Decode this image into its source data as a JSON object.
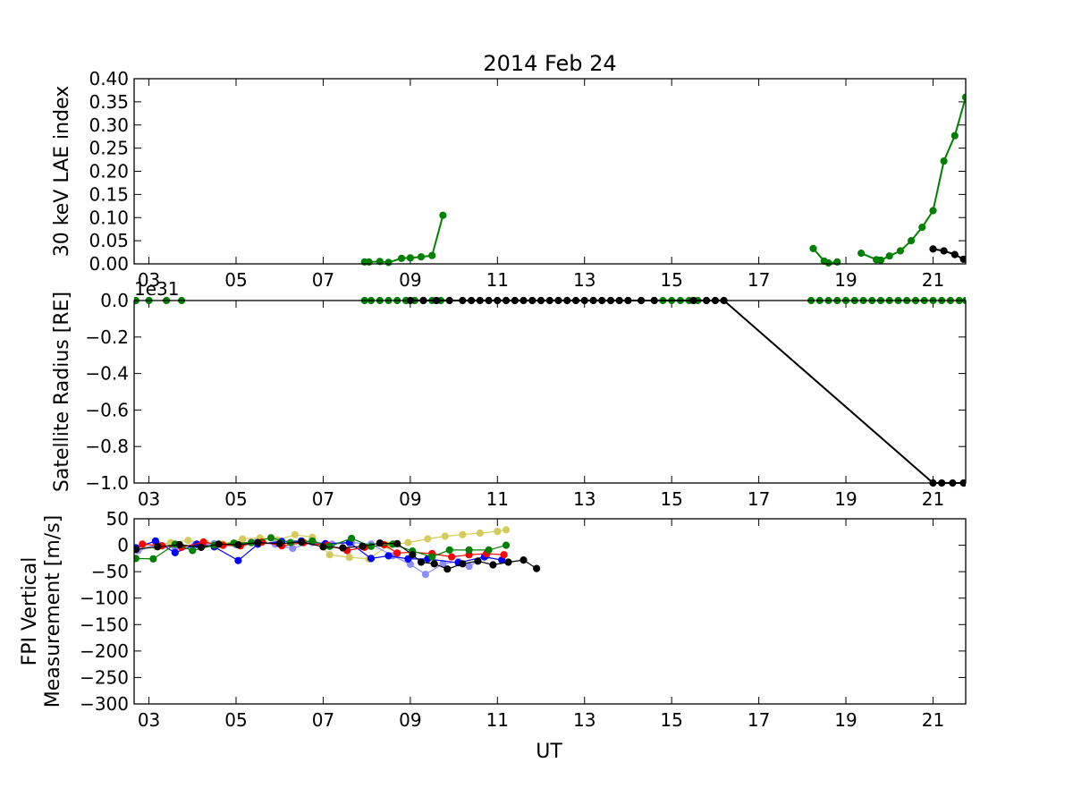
{
  "figure": {
    "title": "2014 Feb 24"
  },
  "colors": {
    "green": "#008000",
    "black": "#000000",
    "blue": "#0000ff",
    "red": "#ff0000",
    "khaki": "#d4cc5a",
    "lightblue": "#8c8cff"
  },
  "chart_data": [
    {
      "type": "line",
      "ylabel": "30 keV LAE index",
      "xlim": [
        2.66,
        21.75
      ],
      "ylim": [
        0.0,
        0.4
      ],
      "xticks": [
        "03",
        "05",
        "07",
        "09",
        "11",
        "13",
        "15",
        "17",
        "19",
        "21"
      ],
      "yticks": [
        "0.00",
        "0.05",
        "0.10",
        "0.15",
        "0.20",
        "0.25",
        "0.30",
        "0.35",
        "0.40"
      ],
      "series": [
        {
          "color": "green",
          "x": [
            7.95,
            8.05,
            8.3,
            8.5,
            8.8,
            9.0,
            9.25,
            9.5,
            9.75
          ],
          "y": [
            0.004,
            0.004,
            0.005,
            0.003,
            0.012,
            0.013,
            0.015,
            0.018,
            0.105
          ]
        },
        {
          "color": "green",
          "x": [
            18.25,
            18.5,
            18.6,
            18.8
          ],
          "y": [
            0.033,
            0.006,
            0.002,
            0.004
          ]
        },
        {
          "color": "green",
          "x": [
            19.35,
            19.7,
            19.8,
            20.0,
            20.25,
            20.5,
            20.75,
            21.0,
            21.25,
            21.5,
            21.75
          ],
          "y": [
            0.023,
            0.009,
            0.008,
            0.017,
            0.028,
            0.05,
            0.079,
            0.115,
            0.222,
            0.277,
            0.36
          ]
        },
        {
          "color": "black",
          "x": [
            21.0,
            21.25,
            21.5,
            21.7
          ],
          "y": [
            0.032,
            0.028,
            0.02,
            0.01
          ]
        }
      ]
    },
    {
      "type": "line",
      "ylabel": "Satellite Radius [RE]",
      "offset_label": "1e31",
      "xlim": [
        2.66,
        21.75
      ],
      "ylim": [
        -1.0,
        0.0
      ],
      "xticks": [
        "03",
        "05",
        "07",
        "09",
        "11",
        "13",
        "15",
        "17",
        "19",
        "21"
      ],
      "yticks": [
        "−1.0",
        "−0.8",
        "−0.6",
        "−0.4",
        "−0.2",
        "0.0"
      ],
      "series": [
        {
          "color": "green",
          "markers_only": true,
          "x": [
            2.7,
            3.0,
            3.4,
            3.75
          ],
          "y": [
            0,
            0,
            0,
            0
          ]
        },
        {
          "color": "green",
          "markers_only": true,
          "x": [
            7.95,
            8.1,
            8.3,
            8.5,
            8.7,
            8.9,
            9.1,
            9.3,
            9.5,
            9.7,
            14.6,
            14.8,
            15.0,
            15.2,
            15.4,
            15.6,
            18.2,
            18.4,
            18.6,
            18.8,
            19.0,
            19.2,
            19.4,
            19.6,
            19.8,
            20.0,
            20.2,
            20.4,
            20.6,
            20.8,
            21.0,
            21.2,
            21.4,
            21.6,
            21.75
          ],
          "y": [
            0,
            0,
            0,
            0,
            0,
            0,
            0,
            0,
            0,
            0,
            0,
            0,
            0,
            0,
            0,
            0,
            0,
            0,
            0,
            0,
            0,
            0,
            0,
            0,
            0,
            0,
            0,
            0,
            0,
            0,
            0,
            0,
            0,
            0,
            0
          ]
        },
        {
          "color": "black",
          "x": [
            9.0,
            9.3,
            9.6,
            9.9,
            10.2,
            10.4,
            10.6,
            10.8,
            11.0,
            11.2,
            11.4,
            11.6,
            11.8,
            12.0,
            12.2,
            12.4,
            12.6,
            12.8,
            13.0,
            13.2,
            13.4,
            13.6,
            13.8,
            14.0,
            14.3,
            14.6,
            15.5,
            15.8,
            16.0,
            16.2,
            21.0,
            21.2,
            21.45,
            21.7
          ],
          "y": [
            0,
            0,
            0,
            0,
            0,
            0,
            0,
            0,
            0,
            0,
            0,
            0,
            0,
            0,
            0,
            0,
            0,
            0,
            0,
            0,
            0,
            0,
            0,
            0,
            0,
            0,
            0,
            0,
            0,
            0,
            -1,
            -1,
            -1,
            -1
          ]
        }
      ]
    },
    {
      "type": "line",
      "ylabel": "FPI Vertical\nMeasurement [m/s]",
      "xlabel": "UT",
      "xlim": [
        2.66,
        21.75
      ],
      "ylim": [
        -300,
        50
      ],
      "xticks": [
        "03",
        "05",
        "07",
        "09",
        "11",
        "13",
        "15",
        "17",
        "19",
        "21"
      ],
      "yticks": [
        "−300",
        "−250",
        "−200",
        "−150",
        "−100",
        "−50",
        "0",
        "50"
      ],
      "series": [
        {
          "color": "khaki",
          "x": [
            2.8,
            3.15,
            3.5,
            3.9,
            4.3,
            4.7,
            5.15,
            5.55,
            5.95,
            6.35,
            6.75,
            7.15,
            7.6,
            8.05,
            8.5,
            8.95,
            9.4,
            9.8,
            10.2,
            10.6,
            11.0,
            11.2
          ],
          "y": [
            -5,
            -2,
            5,
            9,
            4,
            2,
            12,
            14,
            10,
            20,
            15,
            -18,
            -23,
            -26,
            0,
            5,
            12,
            17,
            20,
            23,
            26,
            29
          ]
        },
        {
          "color": "lightblue",
          "x": [
            2.75,
            3.2,
            3.6,
            4.05,
            4.5,
            5.0,
            5.45,
            5.9,
            6.3,
            6.75,
            7.2,
            7.65,
            8.1,
            8.6,
            9.0,
            9.35,
            9.75,
            10.1,
            10.35,
            10.75
          ],
          "y": [
            -10,
            2,
            -5,
            0,
            3,
            1,
            5,
            2,
            -6,
            5,
            2,
            5,
            2,
            -20,
            -36,
            -55,
            -35,
            -31,
            -40,
            -20
          ]
        },
        {
          "color": "blue",
          "x": [
            2.7,
            3.15,
            3.6,
            4.1,
            4.5,
            5.05,
            5.5,
            6.05,
            6.5,
            7.05,
            7.6,
            8.1,
            8.5,
            8.95,
            9.4,
            10.1,
            10.7,
            11.1
          ],
          "y": [
            -5,
            8,
            -14,
            2,
            -3,
            -29,
            2,
            7,
            8,
            3,
            5,
            -25,
            -20,
            -26,
            -26,
            -33,
            -22,
            -28
          ]
        },
        {
          "color": "red",
          "x": [
            2.85,
            3.3,
            3.75,
            4.25,
            4.7,
            5.1,
            5.6,
            6.05,
            6.55,
            7.1,
            7.55,
            7.95,
            8.4,
            8.7,
            9.05,
            9.5,
            9.95,
            10.35,
            10.75,
            11.15
          ],
          "y": [
            2,
            -1,
            -4,
            6,
            0,
            -1,
            6,
            -1,
            5,
            0,
            -10,
            -4,
            1,
            -15,
            -13,
            -16,
            -22,
            -18,
            -16,
            -18
          ]
        },
        {
          "color": "green",
          "x": [
            2.7,
            3.1,
            3.6,
            4.0,
            4.5,
            4.95,
            5.35,
            5.8,
            6.25,
            6.75,
            7.15,
            7.65,
            8.1,
            8.6,
            9.05,
            9.5,
            9.9,
            10.35,
            10.8,
            11.2
          ],
          "y": [
            -25,
            -26,
            2,
            -10,
            0,
            4,
            5,
            14,
            5,
            8,
            -2,
            13,
            -2,
            2,
            -11,
            -22,
            -9,
            -9,
            -9,
            0
          ]
        },
        {
          "color": "black",
          "x": [
            2.7,
            3.2,
            3.7,
            4.2,
            4.6,
            5.05,
            5.5,
            6.0,
            6.5,
            7.0,
            7.45,
            7.9,
            8.3,
            8.7,
            9.05,
            9.25,
            9.55,
            9.85,
            10.2,
            10.55,
            10.9,
            11.25,
            11.6,
            11.9
          ],
          "y": [
            -8,
            -3,
            1,
            -4,
            2,
            1,
            5,
            3,
            6,
            -3,
            -5,
            -2,
            4,
            3,
            -18,
            -32,
            -35,
            -45,
            -35,
            -30,
            -37,
            -32,
            -28,
            -44
          ]
        }
      ]
    }
  ]
}
